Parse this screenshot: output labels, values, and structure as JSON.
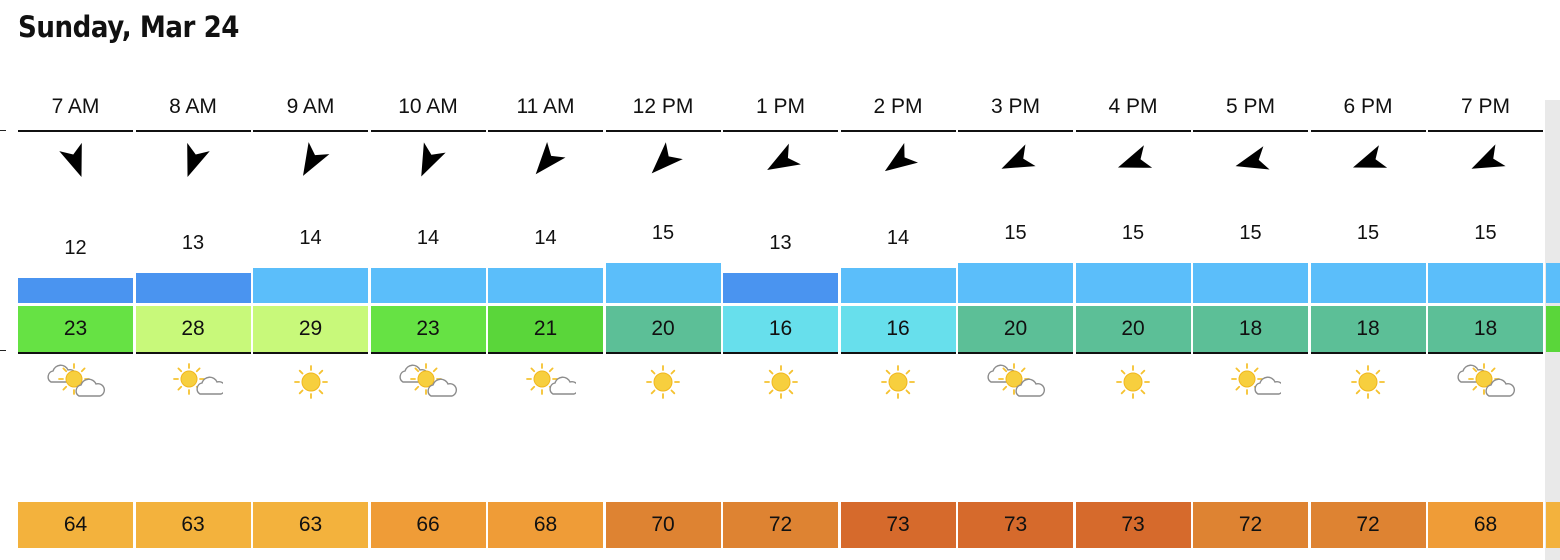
{
  "title": "Sunday, Mar 24",
  "hours": [
    {
      "time": "7 AM",
      "wind_dir_deg": 160,
      "wind_speed": "12",
      "speed_color": "#4a94f0",
      "temp": "23",
      "temp_color": "#66e244",
      "condition": "partly-cloudy",
      "humidity": "64",
      "humidity_color": "#f3b23d"
    },
    {
      "time": "8 AM",
      "wind_dir_deg": 200,
      "wind_speed": "13",
      "speed_color": "#4a94f0",
      "temp": "28",
      "temp_color": "#c8f97a",
      "condition": "mostly-sunny",
      "humidity": "63",
      "humidity_color": "#f3b23d"
    },
    {
      "time": "9 AM",
      "wind_dir_deg": 210,
      "wind_speed": "14",
      "speed_color": "#5bbefa",
      "temp": "29",
      "temp_color": "#c8f97a",
      "condition": "sunny",
      "humidity": "63",
      "humidity_color": "#f3b23d"
    },
    {
      "time": "10 AM",
      "wind_dir_deg": 205,
      "wind_speed": "14",
      "speed_color": "#5bbefa",
      "temp": "23",
      "temp_color": "#66e244",
      "condition": "partly-cloudy",
      "humidity": "66",
      "humidity_color": "#ef9c37"
    },
    {
      "time": "11 AM",
      "wind_dir_deg": 220,
      "wind_speed": "14",
      "speed_color": "#5bbefa",
      "temp": "21",
      "temp_color": "#5ad63a",
      "condition": "mostly-sunny",
      "humidity": "68",
      "humidity_color": "#ef9c37"
    },
    {
      "time": "12 PM",
      "wind_dir_deg": 225,
      "wind_speed": "15",
      "speed_color": "#5bbefa",
      "temp": "20",
      "temp_color": "#5cbf97",
      "condition": "sunny",
      "humidity": "70",
      "humidity_color": "#de8332"
    },
    {
      "time": "1 PM",
      "wind_dir_deg": 240,
      "wind_speed": "13",
      "speed_color": "#4a94f0",
      "temp": "16",
      "temp_color": "#67dfec",
      "condition": "sunny",
      "humidity": "72",
      "humidity_color": "#de8332"
    },
    {
      "time": "2 PM",
      "wind_dir_deg": 235,
      "wind_speed": "14",
      "speed_color": "#5bbefa",
      "temp": "16",
      "temp_color": "#67dfec",
      "condition": "sunny",
      "humidity": "73",
      "humidity_color": "#d66a2c"
    },
    {
      "time": "3 PM",
      "wind_dir_deg": 245,
      "wind_speed": "15",
      "speed_color": "#5bbefa",
      "temp": "20",
      "temp_color": "#5cbf97",
      "condition": "partly-cloudy",
      "humidity": "73",
      "humidity_color": "#d66a2c"
    },
    {
      "time": "4 PM",
      "wind_dir_deg": 250,
      "wind_speed": "15",
      "speed_color": "#5bbefa",
      "temp": "20",
      "temp_color": "#5cbf97",
      "condition": "sunny",
      "humidity": "73",
      "humidity_color": "#d66a2c"
    },
    {
      "time": "5 PM",
      "wind_dir_deg": 255,
      "wind_speed": "15",
      "speed_color": "#5bbefa",
      "temp": "18",
      "temp_color": "#5cbf97",
      "condition": "mostly-sunny",
      "humidity": "72",
      "humidity_color": "#de8332"
    },
    {
      "time": "6 PM",
      "wind_dir_deg": 250,
      "wind_speed": "15",
      "speed_color": "#5bbefa",
      "temp": "18",
      "temp_color": "#5cbf97",
      "condition": "sunny",
      "humidity": "72",
      "humidity_color": "#de8332"
    },
    {
      "time": "7 PM",
      "wind_dir_deg": 245,
      "wind_speed": "15",
      "speed_color": "#5bbefa",
      "temp": "18",
      "temp_color": "#5cbf97",
      "condition": "partly-cloudy",
      "humidity": "68",
      "humidity_color": "#ef9c37"
    }
  ],
  "next_partial": {
    "speed_color": "#5bbefa",
    "temp_color": "#5ad63a",
    "humidity_color": "#f3b23d"
  }
}
